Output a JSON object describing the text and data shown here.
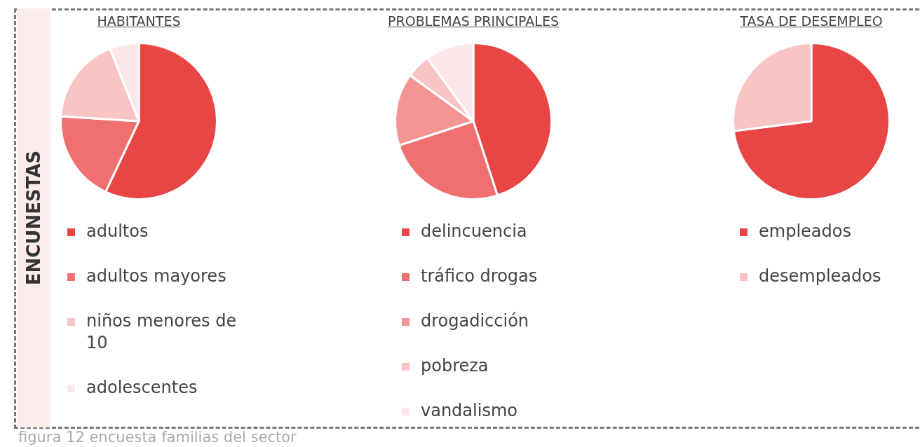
{
  "chart_data": [
    {
      "type": "pie",
      "title": "HABITANTES",
      "categories": [
        "adultos",
        "adultos mayores",
        "niños menores de 10",
        "adolescentes"
      ],
      "values": [
        57,
        19,
        18,
        6
      ],
      "colors": [
        "#e84545",
        "#f07070",
        "#f8c4c4",
        "#fce8e8"
      ],
      "legend": "bottom",
      "annotations": [
        "ENCUNESTAS",
        "figura  12 encuesta familias del sector"
      ]
    },
    {
      "type": "pie",
      "title": "PROBLEMAS PRINCIPALES",
      "categories": [
        "delincuencia",
        "tráfico drogas",
        "drogadicción",
        "pobreza",
        "vandalismo"
      ],
      "values": [
        45,
        25,
        15,
        5,
        10
      ],
      "colors": [
        "#e84545",
        "#f07070",
        "#f49595",
        "#f8c4c4",
        "#fce8e8"
      ],
      "legend": "bottom"
    },
    {
      "type": "pie",
      "title": "TASA DE DESEMPLEO",
      "categories": [
        "empleados",
        "desempleados"
      ],
      "values": [
        73,
        27
      ],
      "colors": [
        "#e84545",
        "#f8c4c4"
      ],
      "legend": "bottom"
    }
  ]
}
